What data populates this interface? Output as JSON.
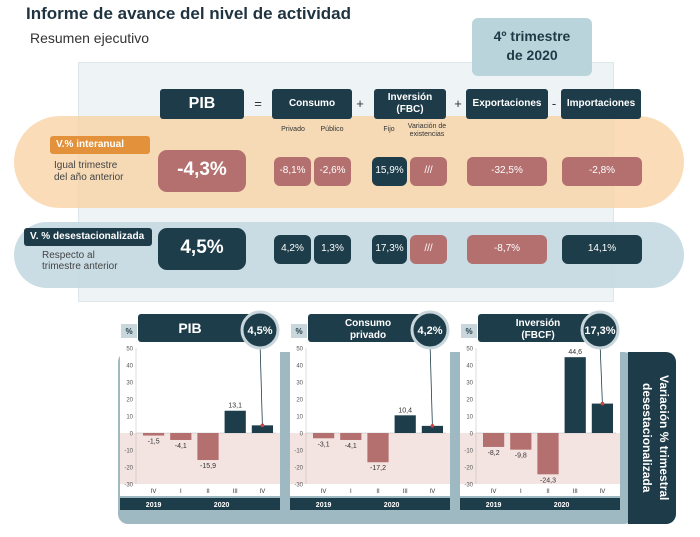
{
  "header": {
    "title": "Informe de avance del nivel de actividad",
    "subtitle": "Resumen ejecutivo",
    "quarter_line1": "4º trimestre",
    "quarter_line2": "de 2020"
  },
  "table": {
    "headers": {
      "pib": "PIB",
      "consumo": "Consumo",
      "inversion_line1": "Inversión",
      "inversion_line2": "(FBC)",
      "exportaciones": "Exportaciones",
      "importaciones": "Importaciones"
    },
    "operators": {
      "eq": "=",
      "plus1": "+",
      "plus2": "+",
      "minus": "-"
    },
    "subheaders": {
      "privado": "Privado",
      "publico": "Público",
      "fijo": "Fijo",
      "var_line1": "Variación de",
      "var_line2": "existencias"
    },
    "row1": {
      "label": "V.% interanual",
      "desc_line1": "Igual trimestre",
      "desc_line2": "del año anterior",
      "pib": "-4,3%",
      "privado": "-8,1%",
      "publico": "-2,6%",
      "fijo": "15,9%",
      "existencias": "///",
      "exportaciones": "-32,5%",
      "importaciones": "-2,8%"
    },
    "row2": {
      "label": "V. % desestacionalizada",
      "desc_line1": "Respecto al",
      "desc_line2": "trimestre anterior",
      "pib": "4,5%",
      "privado": "4,2%",
      "publico": "1,3%",
      "fijo": "17,3%",
      "existencias": "///",
      "exportaciones": "-8,7%",
      "importaciones": "14,1%"
    }
  },
  "side_label": {
    "line1": "Variación % trimestral",
    "line2": "desestacionalizada"
  },
  "colors": {
    "dark": "#1e3d4a",
    "negative": "#b4706f",
    "neg_zone": "#f3e3e1",
    "orange": "#e3913a"
  },
  "chart_data": [
    {
      "type": "bar",
      "title": "PIB",
      "badge": "4,5%",
      "unit": "%",
      "ylim": [
        -30,
        50
      ],
      "yticks": [
        "50",
        "40",
        "30",
        "20",
        "10",
        "0",
        "-10",
        "-20",
        "-30"
      ],
      "categories": [
        "IV",
        "I",
        "II",
        "III",
        "IV"
      ],
      "years": [
        "2019",
        "2020"
      ],
      "values": [
        -1.5,
        -4.1,
        -15.9,
        13.1,
        4.5
      ],
      "value_labels": [
        "-1,5",
        "-4,1",
        "-15,9",
        "13,1",
        ""
      ]
    },
    {
      "type": "bar",
      "title_line1": "Consumo",
      "title_line2": "privado",
      "badge": "4,2%",
      "unit": "%",
      "ylim": [
        -30,
        50
      ],
      "yticks": [
        "50",
        "40",
        "30",
        "20",
        "10",
        "0",
        "-10",
        "-20",
        "-30"
      ],
      "categories": [
        "IV",
        "I",
        "II",
        "III",
        "IV"
      ],
      "years": [
        "2019",
        "2020"
      ],
      "values": [
        -3.1,
        -4.1,
        -17.2,
        10.4,
        4.2
      ],
      "value_labels": [
        "-3,1",
        "-4,1",
        "-17,2",
        "10,4",
        ""
      ]
    },
    {
      "type": "bar",
      "title_line1": "Inversión",
      "title_line2": "(FBCF)",
      "badge": "17,3%",
      "unit": "%",
      "ylim": [
        -30,
        50
      ],
      "yticks": [
        "50",
        "40",
        "30",
        "20",
        "10",
        "0",
        "-10",
        "-20",
        "-30"
      ],
      "categories": [
        "IV",
        "I",
        "II",
        "III",
        "IV"
      ],
      "years": [
        "2019",
        "2020"
      ],
      "values": [
        -8.2,
        -9.8,
        -24.3,
        44.6,
        17.3
      ],
      "value_labels": [
        "-8,2",
        "-9,8",
        "-24,3",
        "44,6",
        ""
      ]
    }
  ]
}
